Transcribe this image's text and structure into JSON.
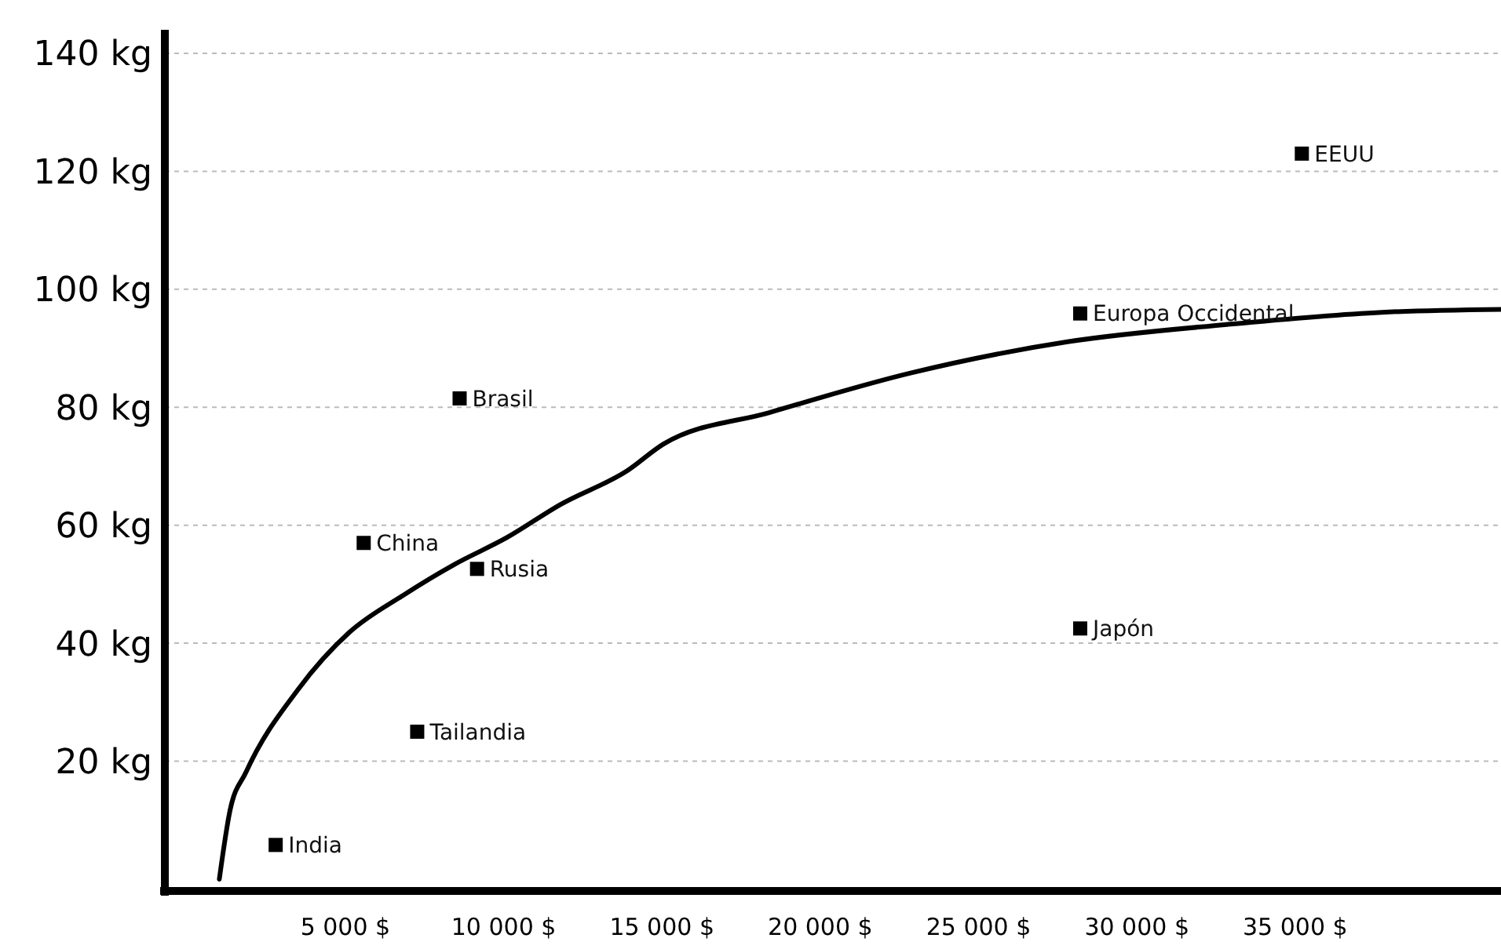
{
  "chart_data": {
    "type": "scatter",
    "xlim": [
      -700,
      41500
    ],
    "ylim": [
      -2,
      140
    ],
    "xticks": [
      {
        "value": 5000,
        "label": "5 000 $"
      },
      {
        "value": 10000,
        "label": "10 000 $"
      },
      {
        "value": 15000,
        "label": "15 000 $"
      },
      {
        "value": 20000,
        "label": "20 000 $"
      },
      {
        "value": 25000,
        "label": "25 000 $"
      },
      {
        "value": 30000,
        "label": "30 000 $"
      },
      {
        "value": 35000,
        "label": "35 000 $"
      }
    ],
    "yticks": [
      {
        "value": 20,
        "label": "20 kg"
      },
      {
        "value": 40,
        "label": "40 kg"
      },
      {
        "value": 60,
        "label": "60 kg"
      },
      {
        "value": 80,
        "label": "80 kg"
      },
      {
        "value": 100,
        "label": "100 kg"
      },
      {
        "value": 120,
        "label": "120 kg"
      },
      {
        "value": 140,
        "label": "140 kg"
      }
    ],
    "grid": "y",
    "marker": "square",
    "series": [
      {
        "color": "#000000",
        "x": [
          2800,
          7270,
          5580,
          9160,
          8610,
          28210,
          35210,
          28210
        ],
        "values": [
          5.8,
          25,
          57,
          52.6,
          81.5,
          95.9,
          123,
          42.5
        ]
      },
      {
        "type": "line",
        "color": "#000000",
        "marker": "none",
        "line_style": "solid",
        "x": [
          1020,
          1360,
          1860,
          3500,
          5140,
          6820,
          8460,
          10100,
          11790,
          13920,
          15060,
          18390,
          22850,
          27810,
          32780,
          37740,
          41500
        ],
        "values": [
          0,
          11.7,
          18.1,
          32.1,
          41.9,
          48.1,
          53.4,
          57.9,
          63.5,
          69.3,
          73.8,
          79.1,
          85.8,
          91.1,
          94.0,
          96.1,
          96.6
        ]
      }
    ],
    "annotations": [
      {
        "text": "India",
        "x": 2800,
        "y": 5.8
      },
      {
        "text": "Tailandia",
        "x": 7270,
        "y": 25
      },
      {
        "text": "China",
        "x": 5580,
        "y": 57
      },
      {
        "text": "Rusia",
        "x": 9160,
        "y": 52.6
      },
      {
        "text": "Brasil",
        "x": 8610,
        "y": 81.5
      },
      {
        "text": "Europa Occidental",
        "x": 28210,
        "y": 95.9
      },
      {
        "text": "EEUU",
        "x": 35210,
        "y": 123
      },
      {
        "text": "Japón",
        "x": 28210,
        "y": 42.5
      }
    ]
  }
}
